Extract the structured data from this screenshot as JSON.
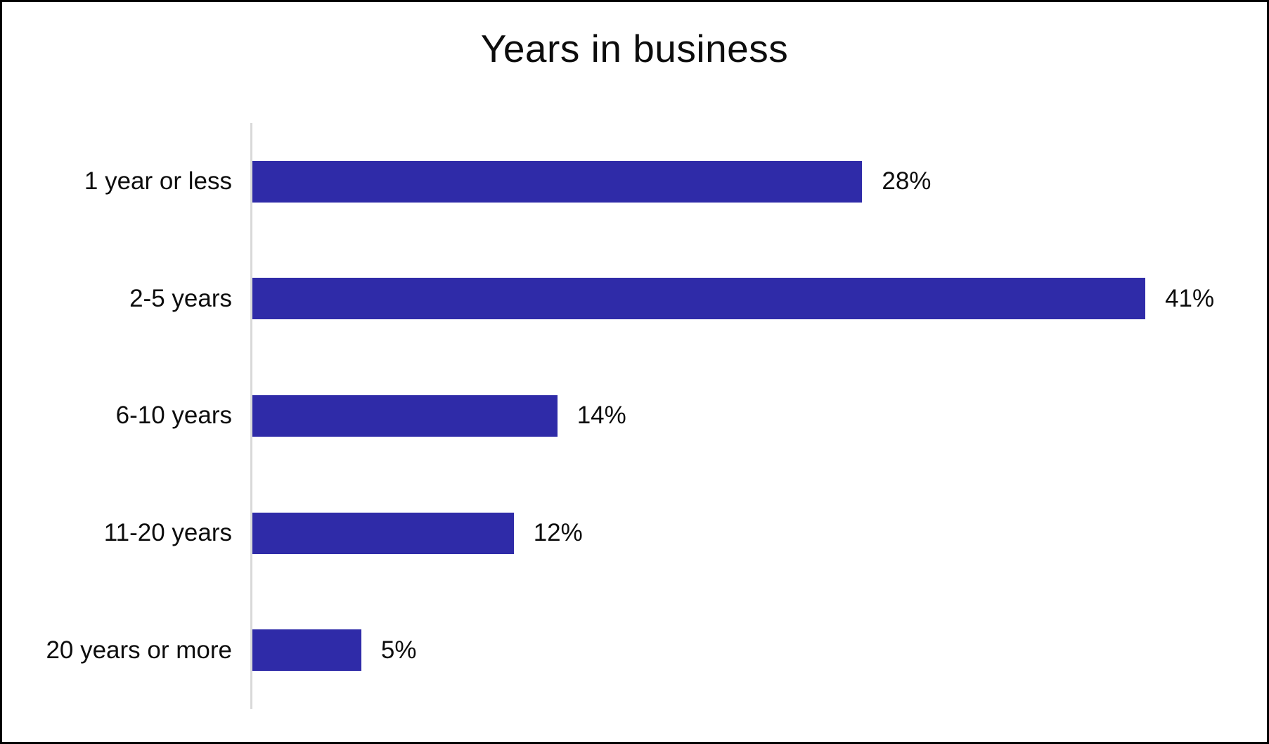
{
  "window": {
    "background": "#ffffff",
    "border_color": "#000000"
  },
  "chart_data": {
    "type": "bar",
    "orientation": "horizontal",
    "title": "Years in business",
    "categories": [
      "1 year or less",
      "2-5 years",
      "6-10 years",
      "11-20 years",
      "20 years or more"
    ],
    "values": [
      28,
      41,
      14,
      12,
      5
    ],
    "value_labels": [
      "28%",
      "41%",
      "14%",
      "12%",
      "5%"
    ],
    "xlabel": "",
    "ylabel": "",
    "xlim": [
      0,
      45
    ],
    "grid": false,
    "legend": "none",
    "data_labels": "outside-end",
    "bar_color": "#2f2ba8",
    "axis_line_color": "#d9d9d9",
    "text_color": "#0d0d0d"
  }
}
